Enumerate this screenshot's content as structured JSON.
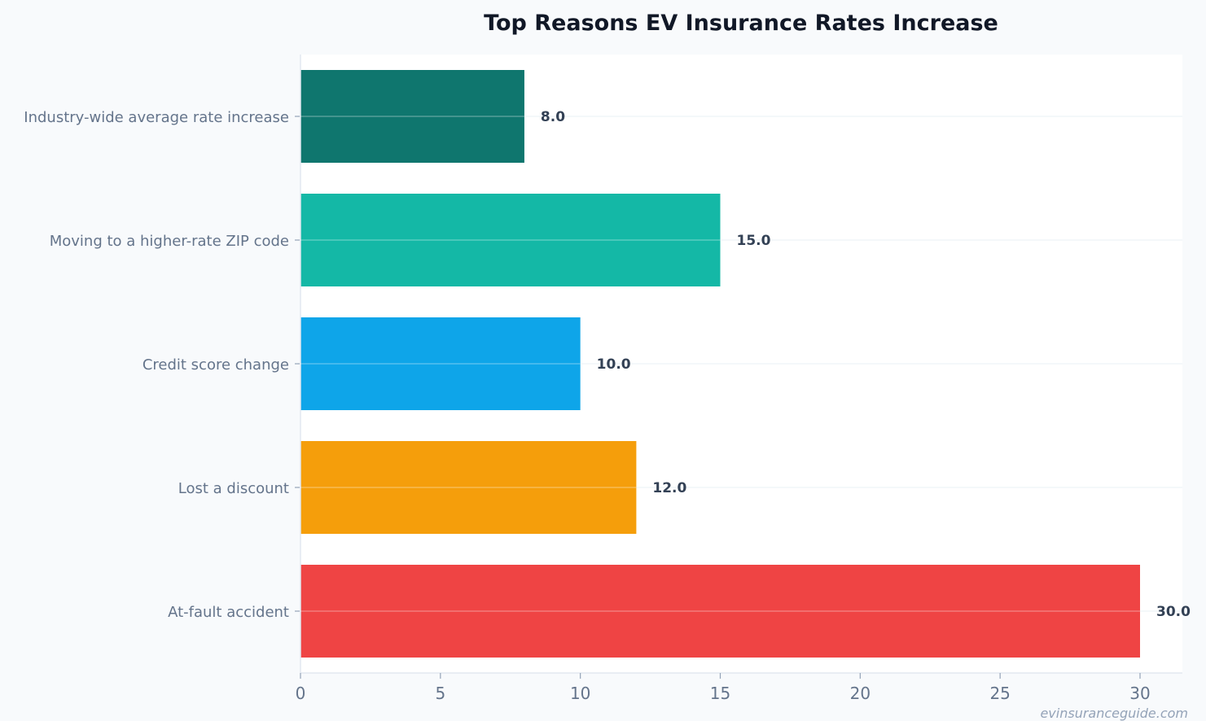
{
  "chart_data": {
    "type": "bar",
    "orientation": "horizontal",
    "title": "Top Reasons EV Insurance Rates Increase",
    "xlabel": "",
    "ylabel": "",
    "categories": [
      "Industry-wide average rate increase",
      "Moving to a higher-rate ZIP code",
      "Credit score change",
      "Lost a discount",
      "At-fault accident"
    ],
    "values": [
      8.0,
      15.0,
      10.0,
      12.0,
      30.0
    ],
    "data_labels": [
      "8.0",
      "15.0",
      "10.0",
      "12.0",
      "30.0"
    ],
    "colors": [
      "#0f766e",
      "#14b8a6",
      "#0ea5e9",
      "#f59e0b",
      "#ef4444"
    ],
    "xlim": [
      0,
      31.5
    ],
    "xticks": [
      0,
      5,
      10,
      15,
      20,
      25,
      30
    ],
    "xtick_labels": [
      "0",
      "5",
      "10",
      "15",
      "20",
      "25",
      "30"
    ],
    "grid": "horizontal",
    "legend": "none"
  },
  "watermark": "evinsuranceguide.com"
}
